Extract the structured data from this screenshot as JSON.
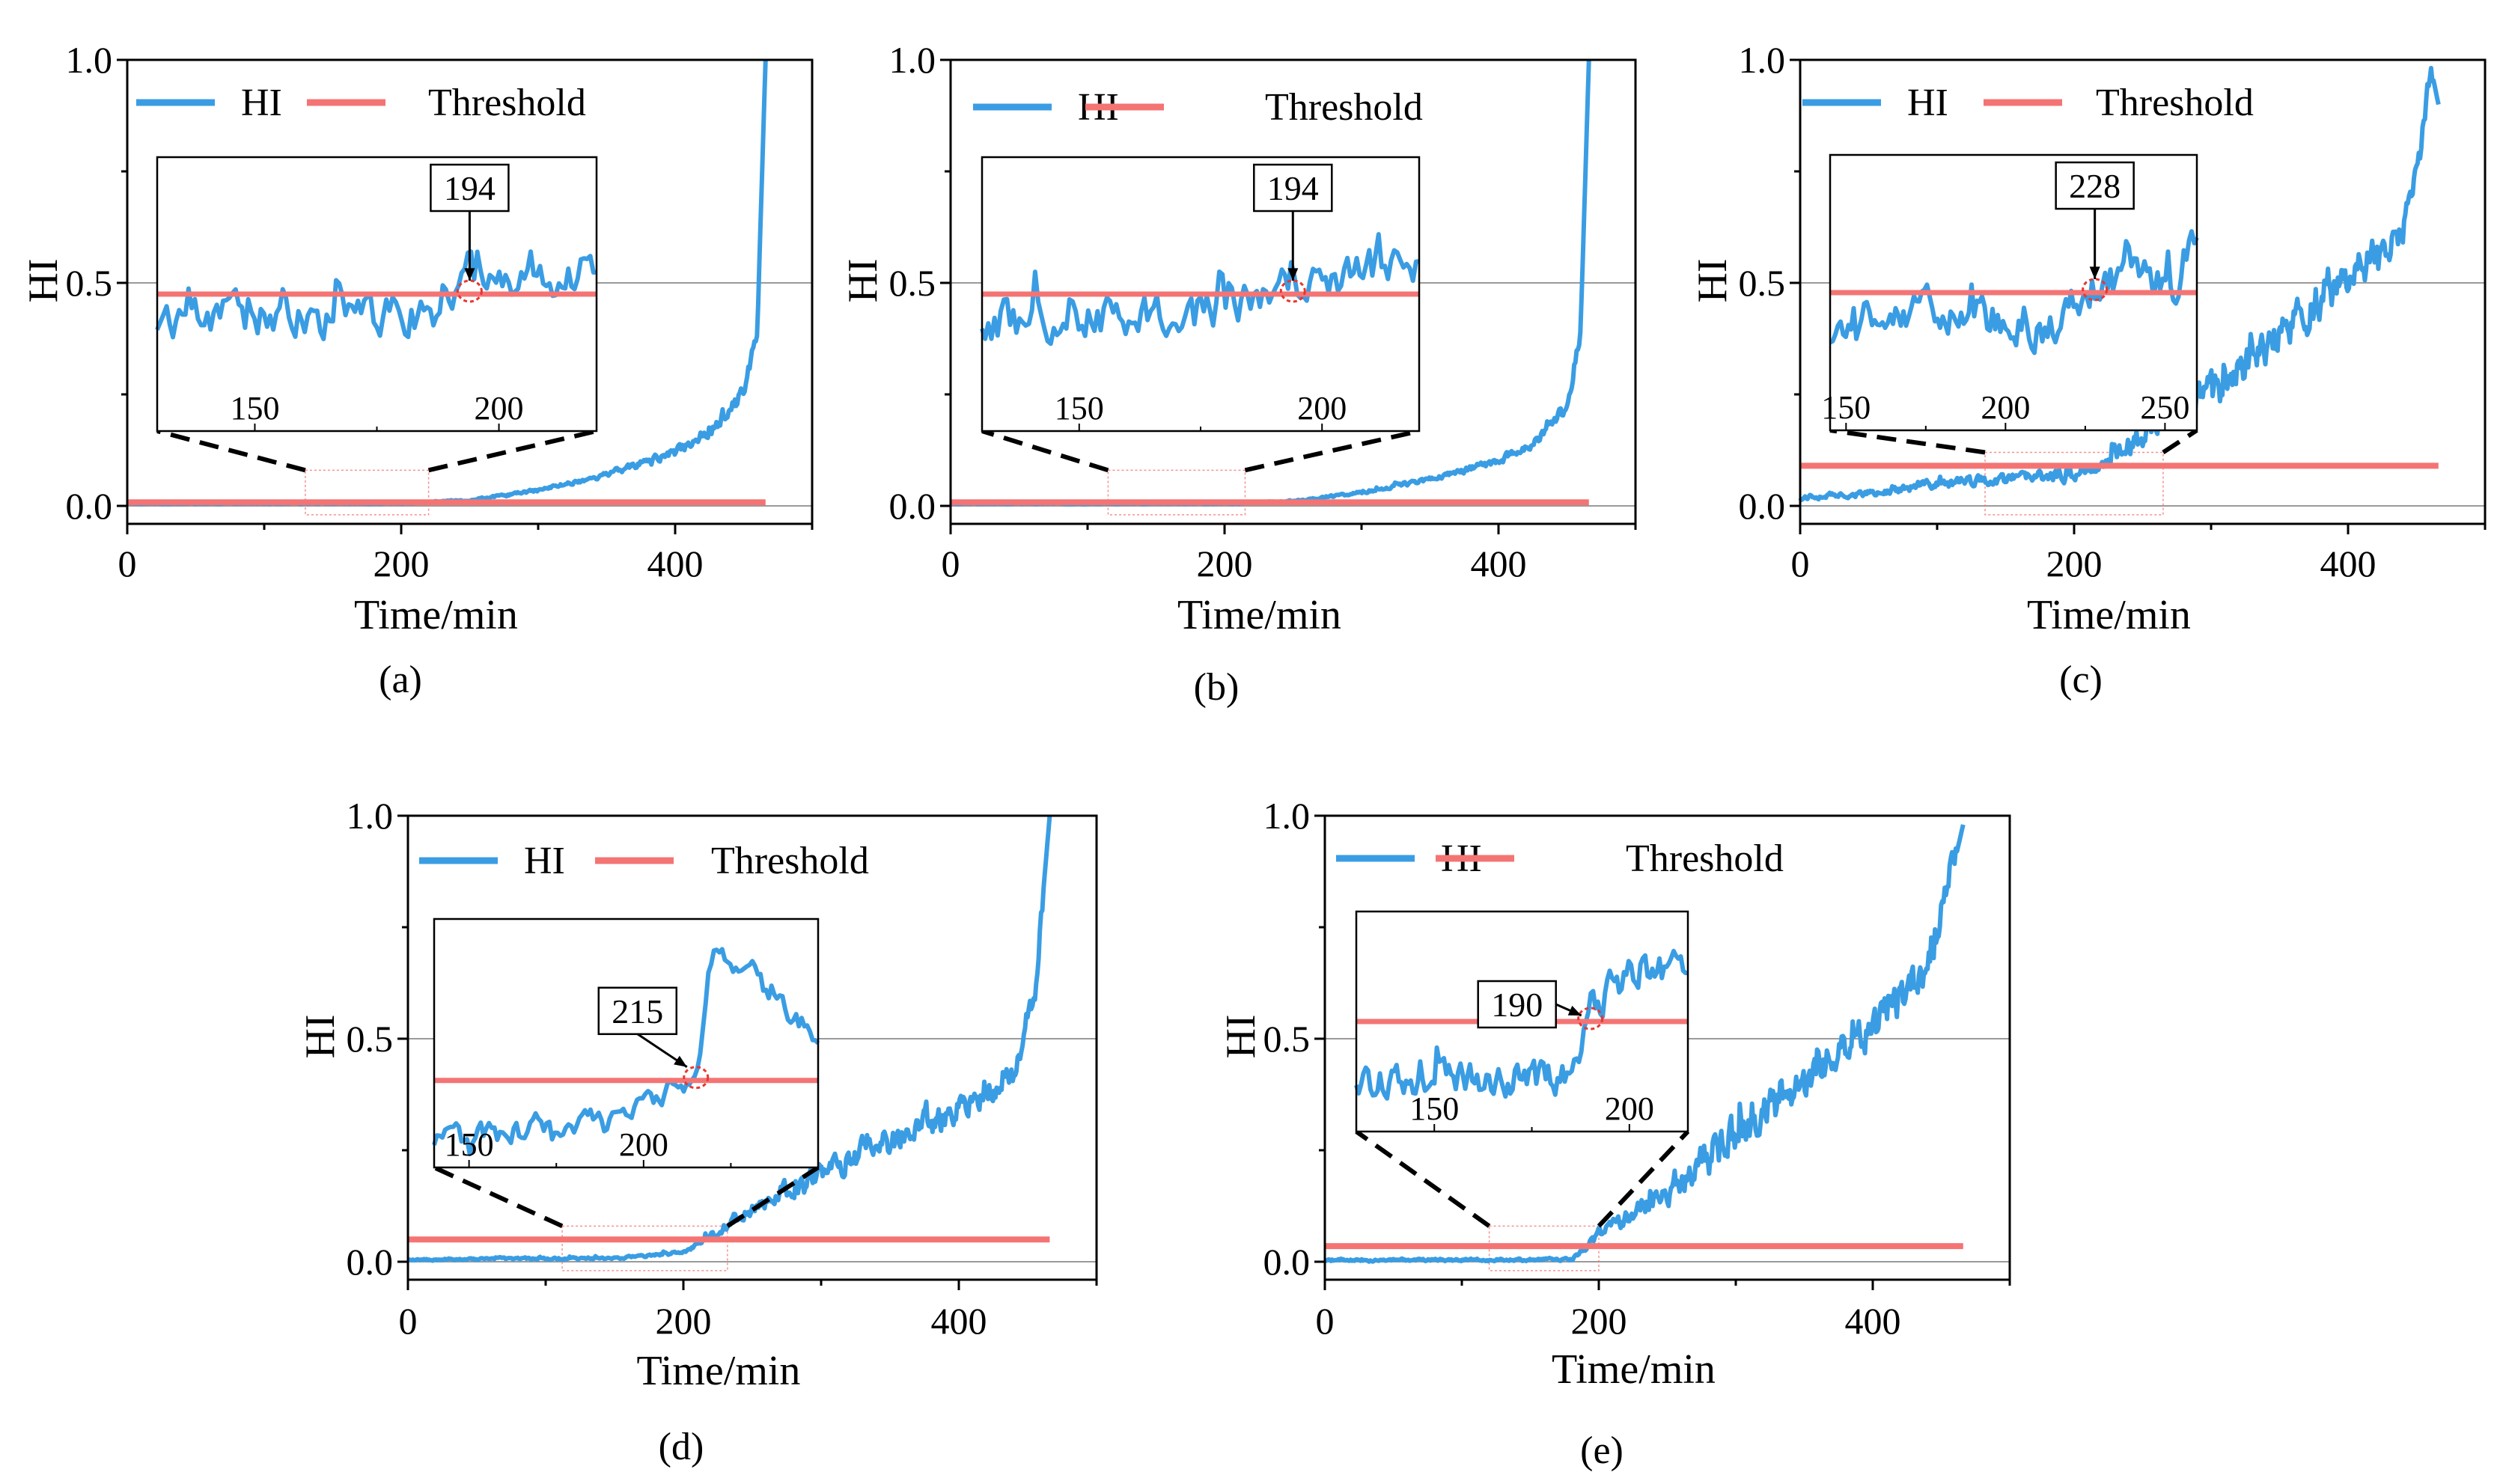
{
  "figure": {
    "xlabel": "Time/min",
    "ylabel": "HI",
    "legend": {
      "hi_label": "HI",
      "threshold_label": "Threshold"
    },
    "colors": {
      "hi": "#3a9de3",
      "threshold": "#f47474",
      "axis": "#000000",
      "grid": "#9a9a9a",
      "zoom_box": "#f47474"
    }
  },
  "chart_data": [
    {
      "type": "line",
      "panel_label": "(a)",
      "xlim": [
        0,
        500
      ],
      "ylim": [
        0,
        1.0
      ],
      "xticks": [
        0,
        200,
        400
      ],
      "xtick_labels": [
        "0",
        "200",
        "400"
      ],
      "yticks": [
        0.0,
        0.5,
        1.0
      ],
      "ytick_labels": [
        "0.0",
        "0.5",
        "1.0"
      ],
      "threshold": 0.008,
      "hi_trend": [
        [
          0,
          0.005
        ],
        [
          200,
          0.005
        ],
        [
          250,
          0.012
        ],
        [
          300,
          0.035
        ],
        [
          350,
          0.07
        ],
        [
          400,
          0.12
        ],
        [
          430,
          0.18
        ],
        [
          450,
          0.25
        ],
        [
          460,
          0.4
        ],
        [
          466,
          1.0
        ]
      ],
      "noise_amp": 0.03,
      "end_x": 466,
      "zoom_window": [
        130,
        220
      ],
      "inset": {
        "xlim": [
          130,
          220
        ],
        "xticks": [
          150,
          200
        ],
        "xtick_labels": [
          "150",
          "200"
        ],
        "threshold_level": 0.5,
        "trend": [
          [
            130,
            0.4
          ],
          [
            160,
            0.41
          ],
          [
            180,
            0.43
          ],
          [
            190,
            0.46
          ],
          [
            194,
            0.55
          ],
          [
            220,
            0.58
          ]
        ],
        "noise_amp": 0.13,
        "annotation": {
          "x": 194,
          "text": "194"
        }
      }
    },
    {
      "type": "line",
      "panel_label": "(b)",
      "xlim": [
        0,
        500
      ],
      "ylim": [
        0,
        1.0
      ],
      "xticks": [
        0,
        200,
        400
      ],
      "xtick_labels": [
        "0",
        "200",
        "400"
      ],
      "yticks": [
        0.0,
        0.5,
        1.0
      ],
      "ytick_labels": [
        "0.0",
        "0.5",
        "1.0"
      ],
      "threshold": 0.008,
      "hi_trend": [
        [
          0,
          0.005
        ],
        [
          200,
          0.005
        ],
        [
          250,
          0.01
        ],
        [
          300,
          0.03
        ],
        [
          350,
          0.06
        ],
        [
          400,
          0.1
        ],
        [
          430,
          0.15
        ],
        [
          450,
          0.22
        ],
        [
          460,
          0.4
        ],
        [
          466,
          1.0
        ]
      ],
      "noise_amp": 0.03,
      "end_x": 466,
      "zoom_window": [
        115,
        215
      ],
      "inset": {
        "xlim": [
          130,
          220
        ],
        "xticks": [
          150,
          200
        ],
        "xtick_labels": [
          "150",
          "200"
        ],
        "threshold_level": 0.5,
        "trend": [
          [
            130,
            0.4
          ],
          [
            160,
            0.42
          ],
          [
            180,
            0.44
          ],
          [
            190,
            0.46
          ],
          [
            194,
            0.55
          ],
          [
            220,
            0.62
          ]
        ],
        "noise_amp": 0.13,
        "annotation": {
          "x": 194,
          "text": "194"
        }
      }
    },
    {
      "type": "line",
      "panel_label": "(c)",
      "xlim": [
        0,
        500
      ],
      "ylim": [
        0,
        1.0
      ],
      "xticks": [
        0,
        200,
        400
      ],
      "xtick_labels": [
        "0",
        "200",
        "400"
      ],
      "yticks": [
        0.0,
        0.5,
        1.0
      ],
      "ytick_labels": [
        "0.0",
        "0.5",
        "1.0"
      ],
      "threshold": 0.09,
      "hi_trend": [
        [
          0,
          0.02
        ],
        [
          60,
          0.03
        ],
        [
          100,
          0.05
        ],
        [
          200,
          0.07
        ],
        [
          228,
          0.11
        ],
        [
          300,
          0.25
        ],
        [
          350,
          0.38
        ],
        [
          400,
          0.5
        ],
        [
          440,
          0.62
        ],
        [
          462,
          0.96
        ],
        [
          466,
          0.9
        ]
      ],
      "noise_amp": 0.07,
      "end_x": 466,
      "zoom_window": [
        135,
        265
      ],
      "inset": {
        "xlim": [
          145,
          260
        ],
        "xticks": [
          150,
          200,
          250
        ],
        "xtick_labels": [
          "150",
          "200",
          "250"
        ],
        "threshold_level": 0.5,
        "trend": [
          [
            145,
            0.35
          ],
          [
            160,
            0.45
          ],
          [
            190,
            0.42
          ],
          [
            215,
            0.36
          ],
          [
            228,
            0.52
          ],
          [
            245,
            0.58
          ],
          [
            252,
            0.5
          ],
          [
            260,
            0.7
          ]
        ],
        "noise_amp": 0.12,
        "annotation": {
          "x": 228,
          "text": "228"
        }
      }
    },
    {
      "type": "line",
      "panel_label": "(d)",
      "xlim": [
        0,
        500
      ],
      "ylim": [
        0,
        1.0
      ],
      "xticks": [
        0,
        200,
        400
      ],
      "xtick_labels": [
        "0",
        "200",
        "400"
      ],
      "yticks": [
        0.0,
        0.5,
        1.0
      ],
      "ytick_labels": [
        "0.0",
        "0.5",
        "1.0"
      ],
      "threshold": 0.05,
      "hi_trend": [
        [
          0,
          0.005
        ],
        [
          150,
          0.008
        ],
        [
          200,
          0.02
        ],
        [
          215,
          0.05
        ],
        [
          250,
          0.12
        ],
        [
          300,
          0.2
        ],
        [
          350,
          0.27
        ],
        [
          400,
          0.34
        ],
        [
          440,
          0.42
        ],
        [
          455,
          0.6
        ],
        [
          466,
          1.0
        ]
      ],
      "noise_amp": 0.05,
      "end_x": 466,
      "zoom_window": [
        112,
        232
      ],
      "inset": {
        "xlim": [
          140,
          250
        ],
        "xticks": [
          150,
          200
        ],
        "xtick_labels": [
          "150",
          "200"
        ],
        "threshold_level": 0.35,
        "trend": [
          [
            140,
            0.1
          ],
          [
            170,
            0.15
          ],
          [
            190,
            0.18
          ],
          [
            205,
            0.3
          ],
          [
            215,
            0.34
          ],
          [
            220,
            0.9
          ],
          [
            230,
            0.8
          ],
          [
            250,
            0.5
          ]
        ],
        "noise_amp": 0.08,
        "annotation": {
          "x": 215,
          "text": "215"
        }
      }
    },
    {
      "type": "line",
      "panel_label": "(e)",
      "xlim": [
        0,
        500
      ],
      "ylim": [
        0,
        1.0
      ],
      "xticks": [
        0,
        200,
        400
      ],
      "xtick_labels": [
        "0",
        "200",
        "400"
      ],
      "yticks": [
        0.0,
        0.5,
        1.0
      ],
      "ytick_labels": [
        "0.0",
        "0.5",
        "1.0"
      ],
      "threshold": 0.035,
      "hi_trend": [
        [
          0,
          0.003
        ],
        [
          180,
          0.005
        ],
        [
          190,
          0.03
        ],
        [
          200,
          0.06
        ],
        [
          250,
          0.16
        ],
        [
          300,
          0.28
        ],
        [
          350,
          0.4
        ],
        [
          400,
          0.52
        ],
        [
          440,
          0.66
        ],
        [
          460,
          0.9
        ],
        [
          466,
          0.98
        ]
      ],
      "noise_amp": 0.07,
      "end_x": 466,
      "zoom_window": [
        120,
        200
      ],
      "inset": {
        "xlim": [
          130,
          215
        ],
        "xticks": [
          150,
          200
        ],
        "xtick_labels": [
          "150",
          "200"
        ],
        "threshold_level": 0.5,
        "trend": [
          [
            130,
            0.22
          ],
          [
            160,
            0.24
          ],
          [
            185,
            0.24
          ],
          [
            190,
            0.55
          ],
          [
            200,
            0.75
          ],
          [
            215,
            0.72
          ]
        ],
        "noise_amp": 0.13,
        "annotation": {
          "x": 190,
          "text": "190"
        }
      }
    }
  ]
}
